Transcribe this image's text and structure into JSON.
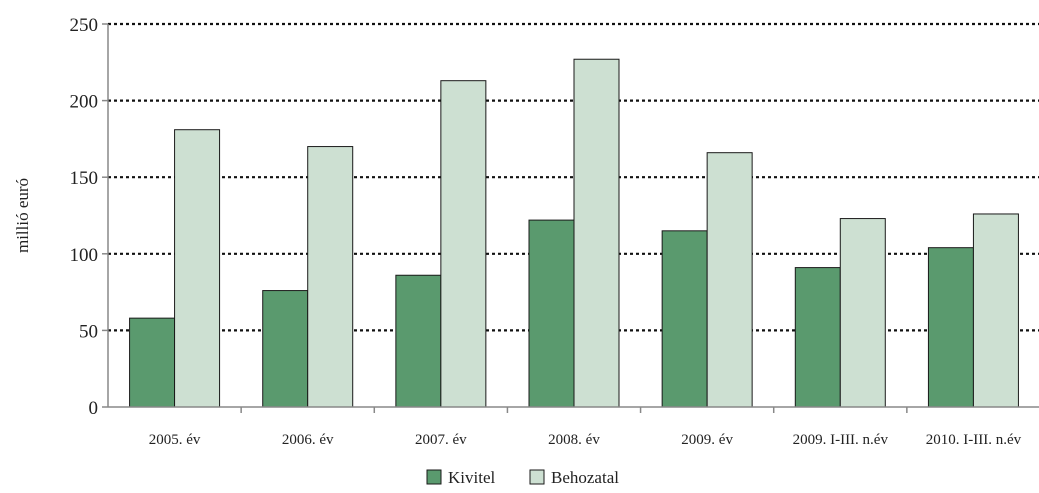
{
  "chart_data": {
    "type": "bar",
    "title": "",
    "xlabel": "",
    "ylabel": "millió euró",
    "ylim": [
      0,
      250
    ],
    "yticks": [
      0,
      50,
      100,
      150,
      200,
      250
    ],
    "grid": "horizontal dotted",
    "legend_position": "bottom",
    "categories": [
      "2005. év",
      "2006. év",
      "2007. év",
      "2008. év",
      "2009. év",
      "2009. I-III. n.év",
      "2010. I-III. n.év"
    ],
    "series": [
      {
        "name": "Kivitel",
        "color": "#5a9a6e",
        "values": [
          58,
          76,
          86,
          122,
          115,
          91,
          104
        ]
      },
      {
        "name": "Behozatal",
        "color": "#cde0d2",
        "values": [
          181,
          170,
          213,
          227,
          166,
          123,
          126
        ]
      }
    ]
  }
}
